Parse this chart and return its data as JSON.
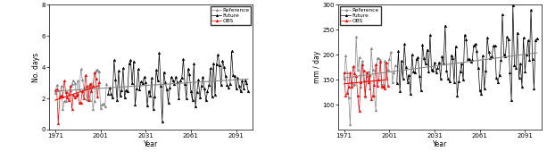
{
  "left": {
    "ylabel": "No. days",
    "xlabel": "Year",
    "ylim": [
      0,
      8
    ],
    "yticks": [
      0,
      2,
      4,
      6,
      8
    ],
    "xticks": [
      1971,
      2001,
      2031,
      2061,
      2091
    ]
  },
  "right": {
    "ylabel": "mm / day",
    "xlabel": "Year",
    "ylim": [
      50,
      300
    ],
    "yticks": [
      100,
      150,
      200,
      250,
      300
    ],
    "xticks": [
      1971,
      2001,
      2031,
      2061,
      2091
    ]
  },
  "colors": {
    "reference": "#888888",
    "future": "#000000",
    "obs": "#ff0000",
    "trend": "#888888",
    "trend_future": "#000000"
  },
  "legend_labels": [
    "Reference",
    "Future",
    "OBS"
  ],
  "marker": "^",
  "markersize": 2.0,
  "linewidth": 0.5
}
